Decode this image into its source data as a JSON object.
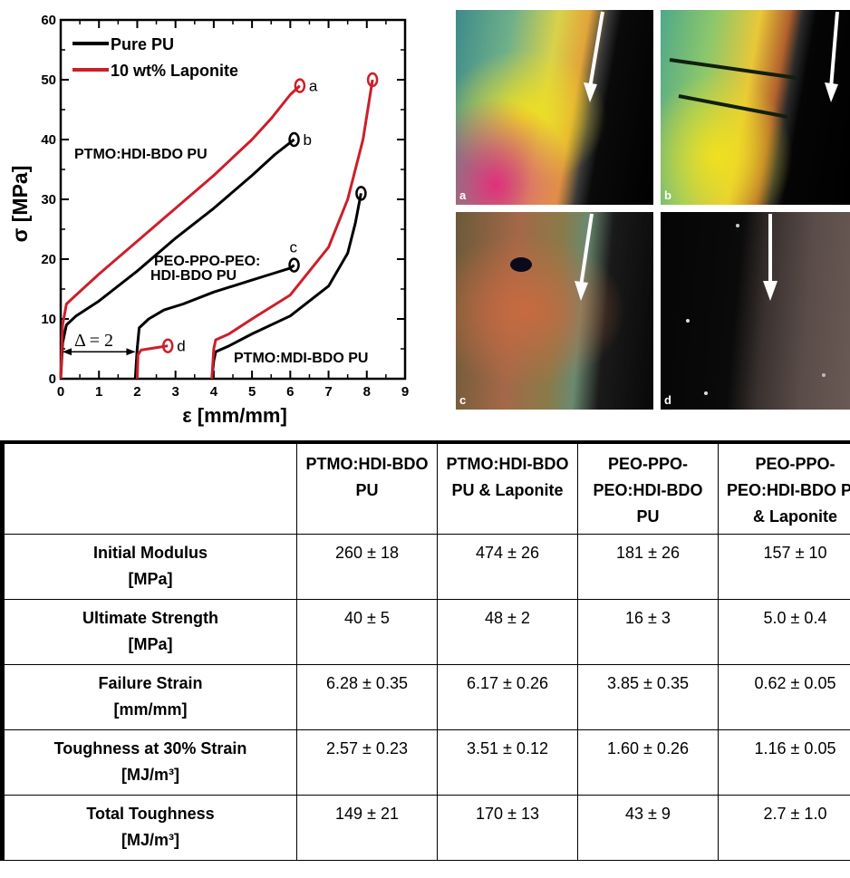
{
  "chart_data": {
    "type": "line",
    "xlabel": "ε [mm/mm]",
    "ylabel": "σ [MPa]",
    "xlim": [
      0,
      9
    ],
    "ylim": [
      0,
      60
    ],
    "x_ticks": [
      "0",
      "1",
      "2",
      "3",
      "4",
      "5",
      "6",
      "7",
      "8",
      "9"
    ],
    "y_ticks": [
      "0",
      "10",
      "20",
      "30",
      "40",
      "50",
      "60"
    ],
    "legend": [
      {
        "name": "Pure PU",
        "color": "#000000"
      },
      {
        "name": "10 wt% Laponite",
        "color": "#cc1f2a"
      }
    ],
    "legend_position": "top-left",
    "offset_annotation": "Δ = 2",
    "sample_labels": [
      "PTMO:HDI-BDO PU",
      "PEO-PPO-PEO:",
      "HDI-BDO PU",
      "PTMO:MDI-BDO PU"
    ],
    "series": [
      {
        "name": "Pure PU",
        "curve": "b",
        "color": "#000000",
        "x": [
          0,
          0.05,
          0.15,
          0.4,
          1,
          2,
          3,
          4,
          5,
          5.6,
          6.0,
          6.1
        ],
        "y": [
          0,
          6,
          9,
          10.5,
          13,
          18,
          23.5,
          28.5,
          34,
          37.5,
          39.5,
          40
        ]
      },
      {
        "name": "10 wt% Laponite",
        "curve": "a",
        "color": "#cc1f2a",
        "x": [
          0,
          0.05,
          0.15,
          0.4,
          1,
          2,
          3,
          4,
          5,
          5.5,
          6.0,
          6.25
        ],
        "y": [
          0,
          9,
          12.5,
          14,
          17.5,
          23,
          28.5,
          34,
          40,
          43.5,
          47.5,
          49
        ]
      },
      {
        "name": "Pure PU",
        "curve": "c",
        "color": "#000000",
        "x": [
          1.95,
          2.0,
          2.05,
          2.3,
          2.7,
          3.2,
          4,
          5,
          5.5,
          6.0,
          6.1
        ],
        "y": [
          0,
          5,
          8.5,
          10,
          11.5,
          12.5,
          14.5,
          16.5,
          17.5,
          18.5,
          19
        ]
      },
      {
        "name": "10 wt% Laponite",
        "curve": "d",
        "color": "#cc1f2a",
        "x": [
          2.0,
          2.02,
          2.1,
          2.3,
          2.6,
          2.8
        ],
        "y": [
          0,
          4,
          4.8,
          5.0,
          5.3,
          5.5
        ]
      },
      {
        "name": "Pure PU",
        "curve": "PTMO:MDI-BDO",
        "color": "#000000",
        "x": [
          3.95,
          4.0,
          4.05,
          4.4,
          5,
          6,
          7,
          7.5,
          7.7,
          7.85
        ],
        "y": [
          0,
          3,
          4.5,
          5.5,
          7.5,
          10.5,
          15.5,
          21,
          26,
          31
        ]
      },
      {
        "name": "10 wt% Laponite",
        "curve": "PTMO:MDI-BDO",
        "color": "#cc1f2a",
        "x": [
          3.95,
          4.0,
          4.05,
          4.4,
          5,
          6,
          7,
          7.5,
          7.9,
          8.15
        ],
        "y": [
          0,
          5,
          6.5,
          7.5,
          10,
          14,
          22,
          30,
          40,
          50
        ]
      }
    ]
  },
  "micrographs": [
    {
      "label": "a"
    },
    {
      "label": "b"
    },
    {
      "label": "c"
    },
    {
      "label": "d"
    }
  ],
  "table": {
    "headers": [
      "",
      "PTMO:HDI-BDO PU",
      "PTMO:HDI-BDO PU & Laponite",
      "PEO-PPO-PEO:HDI-BDO PU",
      "PEO-PPO-PEO:HDI-BDO PU & Laponite"
    ],
    "rows": [
      {
        "property": "Initial Modulus",
        "unit": "[MPa]",
        "values": [
          "260 ± 18",
          "474 ± 26",
          "181 ± 26",
          "157 ± 10"
        ]
      },
      {
        "property": "Ultimate Strength",
        "unit": "[MPa]",
        "values": [
          "40 ± 5",
          "48 ± 2",
          "16 ± 3",
          "5.0 ± 0.4"
        ]
      },
      {
        "property": "Failure Strain",
        "unit": "[mm/mm]",
        "values": [
          "6.28 ± 0.35",
          "6.17 ± 0.26",
          "3.85 ± 0.35",
          "0.62 ± 0.05"
        ]
      },
      {
        "property": "Toughness at 30% Strain",
        "unit": "[MJ/m³]",
        "values": [
          "2.57 ± 0.23",
          "3.51 ± 0.12",
          "1.60 ± 0.26",
          "1.16 ± 0.05"
        ]
      },
      {
        "property": "Total Toughness",
        "unit": "[MJ/m³]",
        "values": [
          "149 ± 21",
          "170 ± 13",
          "43 ± 9",
          "2.7 ± 1.0"
        ]
      }
    ]
  }
}
